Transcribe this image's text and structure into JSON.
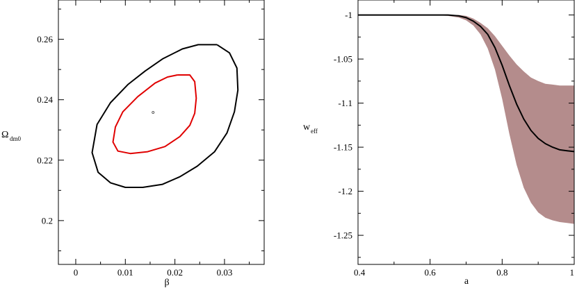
{
  "chart_data": [
    {
      "type": "contour",
      "xlabel": "β",
      "ylabel_main": "Ω",
      "ylabel_sub": "dm0",
      "xlim": [
        -0.0035,
        0.038
      ],
      "ylim": [
        0.1855,
        0.273
      ],
      "xticks": [
        0,
        0.01,
        0.02,
        0.03
      ],
      "xtick_labels": [
        "0",
        "0.01",
        "0.02",
        "0.03"
      ],
      "yticks": [
        0.2,
        0.22,
        0.24,
        0.26
      ],
      "ytick_labels": [
        "0.2",
        "0.22",
        "0.24",
        "0.26"
      ],
      "best_fit": {
        "x": 0.0156,
        "y": 0.2358
      },
      "contours": [
        {
          "level": "outer",
          "color": "#000000",
          "points": [
            [
              0.0285,
              0.2582
            ],
            [
              0.0247,
              0.2582
            ],
            [
              0.0215,
              0.2568
            ],
            [
              0.0175,
              0.2535
            ],
            [
              0.014,
              0.2495
            ],
            [
              0.0105,
              0.245
            ],
            [
              0.007,
              0.239
            ],
            [
              0.0043,
              0.2318
            ],
            [
              0.0033,
              0.2225
            ],
            [
              0.0045,
              0.216
            ],
            [
              0.007,
              0.2125
            ],
            [
              0.01,
              0.211
            ],
            [
              0.0135,
              0.211
            ],
            [
              0.0175,
              0.212
            ],
            [
              0.021,
              0.2145
            ],
            [
              0.0245,
              0.218
            ],
            [
              0.028,
              0.2228
            ],
            [
              0.0305,
              0.229
            ],
            [
              0.032,
              0.236
            ],
            [
              0.0327,
              0.2432
            ],
            [
              0.0325,
              0.2505
            ],
            [
              0.031,
              0.2555
            ],
            [
              0.0285,
              0.2582
            ]
          ]
        },
        {
          "level": "inner",
          "color": "#e00000",
          "points": [
            [
              0.0205,
              0.2482
            ],
            [
              0.023,
              0.2482
            ],
            [
              0.024,
              0.246
            ],
            [
              0.0243,
              0.2405
            ],
            [
              0.024,
              0.2355
            ],
            [
              0.023,
              0.2315
            ],
            [
              0.021,
              0.2278
            ],
            [
              0.018,
              0.2245
            ],
            [
              0.0145,
              0.2228
            ],
            [
              0.011,
              0.2222
            ],
            [
              0.0085,
              0.223
            ],
            [
              0.0075,
              0.226
            ],
            [
              0.008,
              0.231
            ],
            [
              0.0095,
              0.236
            ],
            [
              0.0125,
              0.241
            ],
            [
              0.016,
              0.2455
            ],
            [
              0.0185,
              0.2475
            ],
            [
              0.0205,
              0.2482
            ]
          ]
        }
      ]
    },
    {
      "type": "line",
      "xlabel": "a",
      "ylabel_main": "w",
      "ylabel_sub": "eff",
      "xlim": [
        0.4,
        1.0
      ],
      "ylim": [
        -1.283,
        -0.983
      ],
      "xticks": [
        0.4,
        0.6,
        0.8,
        1.0
      ],
      "xtick_labels": [
        "0.4",
        "0.6",
        "0.8",
        "1"
      ],
      "yticks": [
        -1,
        -1.05,
        -1.1,
        -1.15,
        -1.2,
        -1.25
      ],
      "ytick_labels": [
        "-1",
        "-1.05",
        "-1.1",
        "-1.15",
        "-1.2",
        "-1.25"
      ],
      "band_color": "#b48c8c",
      "line_color": "#000000",
      "x": [
        0.4,
        0.5,
        0.55,
        0.6,
        0.65,
        0.68,
        0.7,
        0.72,
        0.74,
        0.76,
        0.78,
        0.8,
        0.82,
        0.84,
        0.86,
        0.88,
        0.9,
        0.92,
        0.94,
        0.96,
        0.98,
        1.0
      ],
      "w_mean": [
        -1.0,
        -1.0,
        -1.0,
        -1.0,
        -1.0,
        -1.001,
        -1.003,
        -1.007,
        -1.013,
        -1.022,
        -1.037,
        -1.057,
        -1.08,
        -1.101,
        -1.118,
        -1.131,
        -1.14,
        -1.146,
        -1.15,
        -1.153,
        -1.154,
        -1.155
      ],
      "w_upper": [
        -1.0,
        -1.0,
        -1.0,
        -1.0,
        -1.0,
        -1.0,
        -1.001,
        -1.004,
        -1.009,
        -1.015,
        -1.024,
        -1.035,
        -1.046,
        -1.056,
        -1.064,
        -1.071,
        -1.075,
        -1.078,
        -1.079,
        -1.08,
        -1.08,
        -1.08
      ],
      "w_lower": [
        -1.0,
        -1.0,
        -1.0,
        -1.0,
        -1.001,
        -1.003,
        -1.006,
        -1.012,
        -1.022,
        -1.038,
        -1.062,
        -1.095,
        -1.135,
        -1.17,
        -1.196,
        -1.213,
        -1.224,
        -1.23,
        -1.233,
        -1.235,
        -1.236,
        -1.237
      ]
    }
  ]
}
